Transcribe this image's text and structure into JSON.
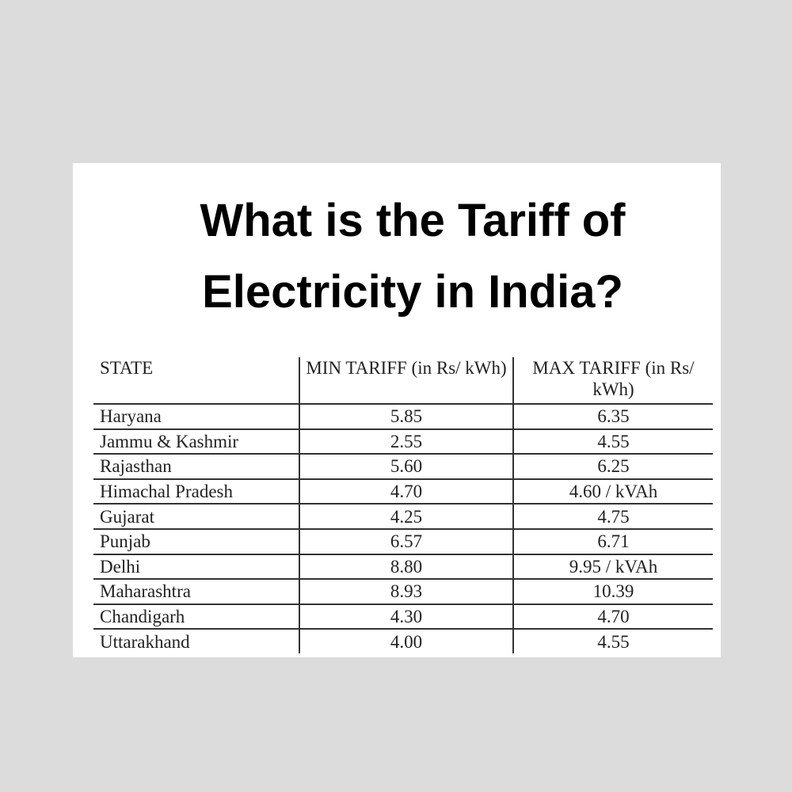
{
  "title": "What is the Tariff of Electricity in India?",
  "table": {
    "headers": [
      "STATE",
      "MIN TARIFF (in Rs/ kWh)",
      "MAX TARIFF (in Rs/ kWh)"
    ],
    "rows": [
      [
        "Haryana",
        "5.85",
        "6.35"
      ],
      [
        "Jammu & Kashmir",
        "2.55",
        "4.55"
      ],
      [
        "Rajasthan",
        "5.60",
        "6.25"
      ],
      [
        "Himachal Pradesh",
        "4.70",
        "4.60 / kVAh"
      ],
      [
        "Gujarat",
        "4.25",
        "4.75"
      ],
      [
        "Punjab",
        "6.57",
        "6.71"
      ],
      [
        "Delhi",
        "8.80",
        "9.95 / kVAh"
      ],
      [
        "Maharashtra",
        "8.93",
        "10.39"
      ],
      [
        "Chandigarh",
        "4.30",
        "4.70"
      ],
      [
        "Uttarakhand",
        "4.00",
        "4.55"
      ]
    ]
  }
}
